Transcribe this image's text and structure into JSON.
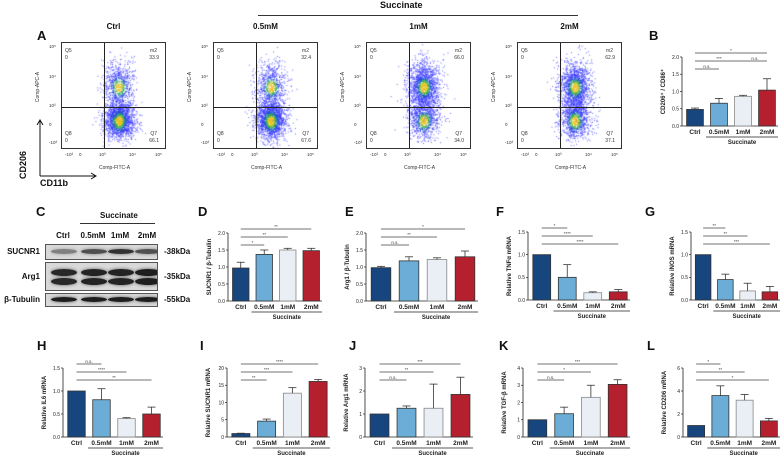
{
  "header": {
    "succinate": "Succinate"
  },
  "panel_letters": {
    "A": "A",
    "B": "B",
    "C": "C",
    "D": "D",
    "E": "E",
    "F": "F",
    "G": "G",
    "H": "H",
    "I": "I",
    "J": "J",
    "K": "K",
    "L": "L"
  },
  "flow": {
    "axis_y_marker": "CD206",
    "axis_x_marker": "CD11b",
    "x_axis_label": "Comp-FITC-A",
    "y_axis_label": "Comp-APC-A",
    "x_ticks": [
      "-10³",
      "0",
      "10³",
      "10⁴",
      "10⁵"
    ],
    "y_ticks": [
      "10⁵",
      "10⁴",
      "10³",
      "0",
      "-10³"
    ],
    "plots": [
      {
        "title": "Ctrl",
        "q5_name": "Q5",
        "q5": "0",
        "m2_name": "m2",
        "m2": "33.9",
        "q8_name": "Q8",
        "q8": "0",
        "q7_name": "Q7",
        "q7": "66.1"
      },
      {
        "title": "0.5mM",
        "q5_name": "Q5",
        "q5": "0",
        "m2_name": "m2",
        "m2": "32.4",
        "q8_name": "Q8",
        "q8": "0",
        "q7_name": "Q7",
        "q7": "67.6"
      },
      {
        "title": "1mM",
        "q5_name": "Q5",
        "q5": "0",
        "m2_name": "m2",
        "m2": "66.0",
        "q8_name": "Q8",
        "q8": "0",
        "q7_name": "Q7",
        "q7": "34.0"
      },
      {
        "title": "2mM",
        "q5_name": "Q5",
        "q5": "0",
        "m2_name": "m2",
        "m2": "62.9",
        "q8_name": "Q8",
        "q8": "0",
        "q7_name": "Q7",
        "q7": "37.1"
      }
    ]
  },
  "blot": {
    "lanes": [
      "Ctrl",
      "0.5mM",
      "1mM",
      "2mM"
    ],
    "rows": [
      {
        "protein": "SUCNR1",
        "kda": "-38kDa",
        "intensity": [
          0.45,
          0.7,
          0.85,
          0.7
        ]
      },
      {
        "protein": "Arg1",
        "kda": "-35kDa",
        "intensity": [
          0.9,
          0.92,
          0.92,
          0.95
        ]
      },
      {
        "protein": "β-Tubulin",
        "kda": "-55kDa",
        "intensity": [
          0.95,
          0.95,
          0.95,
          0.95
        ]
      }
    ]
  },
  "colors": {
    "Ctrl": "#17457e",
    "0.5mM": "#6badd6",
    "1mM": "#e9eff4",
    "2mM": "#b5202f"
  },
  "chart_data": [
    {
      "id": "B",
      "type": "bar",
      "ylabel": "CD206⁺ / CD86⁺",
      "categories": [
        "Ctrl",
        "0.5mM",
        "1mM",
        "2mM"
      ],
      "group_label": "Succinate",
      "ylim": [
        0,
        2
      ],
      "yticks": [
        "0.0",
        "0.5",
        "1.0",
        "1.5",
        "2.0"
      ],
      "values": [
        0.48,
        0.66,
        0.86,
        1.04
      ],
      "errors": [
        0.04,
        0.14,
        0.03,
        0.33
      ],
      "significance": [
        {
          "from": 0,
          "to": 3,
          "label": "*",
          "tier": 0
        },
        {
          "from": 0,
          "to": 2,
          "label": "***",
          "tier": 1
        },
        {
          "from": 2,
          "to": 3,
          "label": "n.s.",
          "tier": 1
        },
        {
          "from": 0,
          "to": 1,
          "label": "n.s.",
          "tier": 2
        }
      ]
    },
    {
      "id": "D",
      "type": "bar",
      "ylabel": "SUCNR1 / β-Tubulin",
      "categories": [
        "Ctrl",
        "0.5mM",
        "1mM",
        "2mM"
      ],
      "group_label": "Succinate",
      "ylim": [
        0,
        2
      ],
      "yticks": [
        "0.0",
        "0.5",
        "1.0",
        "1.5",
        "2.0"
      ],
      "values": [
        0.97,
        1.37,
        1.5,
        1.48
      ],
      "errors": [
        0.17,
        0.13,
        0.05,
        0.07
      ],
      "significance": [
        {
          "from": 0,
          "to": 3,
          "label": "**",
          "tier": 0
        },
        {
          "from": 0,
          "to": 2,
          "label": "**",
          "tier": 1
        },
        {
          "from": 0,
          "to": 1,
          "label": "*",
          "tier": 2
        }
      ]
    },
    {
      "id": "E",
      "type": "bar",
      "ylabel": "Arg1 / β-Tubulin",
      "categories": [
        "Ctrl",
        "0.5mM",
        "1mM",
        "2mM"
      ],
      "group_label": "Succinate",
      "ylim": [
        0,
        2
      ],
      "yticks": [
        "0.0",
        "0.5",
        "1.0",
        "1.5",
        "2.0"
      ],
      "values": [
        0.98,
        1.18,
        1.22,
        1.3
      ],
      "errors": [
        0.04,
        0.12,
        0.05,
        0.17
      ],
      "significance": [
        {
          "from": 0,
          "to": 3,
          "label": "*",
          "tier": 0
        },
        {
          "from": 0,
          "to": 2,
          "label": "**",
          "tier": 1
        },
        {
          "from": 0,
          "to": 1,
          "label": "n.s.",
          "tier": 2
        }
      ]
    },
    {
      "id": "F",
      "type": "bar",
      "ylabel": "Relative TNFα mRNA",
      "categories": [
        "Ctrl",
        "0.5mM",
        "1mM",
        "2mM"
      ],
      "group_label": "Succinate",
      "ylim": [
        0,
        1.5
      ],
      "yticks": [
        "0.0",
        "0.5",
        "1.0",
        "1.5"
      ],
      "values": [
        1.0,
        0.5,
        0.16,
        0.18
      ],
      "errors": [
        0,
        0.28,
        0.02,
        0.05
      ],
      "significance": [
        {
          "from": 0,
          "to": 1,
          "label": "*",
          "tier": 0
        },
        {
          "from": 0,
          "to": 2,
          "label": "****",
          "tier": 1
        },
        {
          "from": 0,
          "to": 3,
          "label": "****",
          "tier": 2
        }
      ]
    },
    {
      "id": "G",
      "type": "bar",
      "ylabel": "Relative iNOS mRNA",
      "categories": [
        "Ctrl",
        "0.5mM",
        "1mM",
        "2mM"
      ],
      "group_label": "Succinate",
      "ylim": [
        0,
        1.5
      ],
      "yticks": [
        "0.0",
        "0.5",
        "1.0",
        "1.5"
      ],
      "values": [
        1.0,
        0.45,
        0.2,
        0.18
      ],
      "errors": [
        0,
        0.12,
        0.17,
        0.12
      ],
      "significance": [
        {
          "from": 0,
          "to": 1,
          "label": "**",
          "tier": 0
        },
        {
          "from": 0,
          "to": 2,
          "label": "**",
          "tier": 1
        },
        {
          "from": 0,
          "to": 3,
          "label": "***",
          "tier": 2
        }
      ]
    },
    {
      "id": "H",
      "type": "bar",
      "ylabel": "Relative IL6 mRNA",
      "categories": [
        "Ctrl",
        "0.5mM",
        "1mM",
        "2mM"
      ],
      "group_label": "Succinate",
      "ylim": [
        0,
        1.5
      ],
      "yticks": [
        "0.0",
        "0.5",
        "1.0",
        "1.5"
      ],
      "values": [
        1.0,
        0.81,
        0.4,
        0.5
      ],
      "errors": [
        0,
        0.24,
        0.02,
        0.15
      ],
      "significance": [
        {
          "from": 0,
          "to": 1,
          "label": "n.s.",
          "tier": 0
        },
        {
          "from": 0,
          "to": 2,
          "label": "****",
          "tier": 1
        },
        {
          "from": 0,
          "to": 3,
          "label": "**",
          "tier": 2
        }
      ]
    },
    {
      "id": "I",
      "type": "bar",
      "ylabel": "Relative SUCNR1 mRNA",
      "categories": [
        "Ctrl",
        "0.5mM",
        "1mM",
        "2mM"
      ],
      "group_label": "Succinate",
      "ylim": [
        0,
        20
      ],
      "yticks": [
        "0",
        "5",
        "10",
        "15",
        "20"
      ],
      "values": [
        1.0,
        4.6,
        12.7,
        16.1
      ],
      "errors": [
        0.1,
        0.6,
        1.6,
        0.6
      ],
      "significance": [
        {
          "from": 0,
          "to": 3,
          "label": "****",
          "tier": 0
        },
        {
          "from": 0,
          "to": 2,
          "label": "***",
          "tier": 1
        },
        {
          "from": 0,
          "to": 1,
          "label": "**",
          "tier": 2
        }
      ]
    },
    {
      "id": "J",
      "type": "bar",
      "ylabel": "Relative Arg1 mRNA",
      "categories": [
        "Ctrl",
        "0.5mM",
        "1mM",
        "2mM"
      ],
      "group_label": "Succinate",
      "ylim": [
        0,
        3
      ],
      "yticks": [
        "0",
        "1",
        "2",
        "3"
      ],
      "values": [
        1.0,
        1.25,
        1.25,
        1.85
      ],
      "errors": [
        0,
        0.1,
        1.05,
        0.75
      ],
      "significance": [
        {
          "from": 0,
          "to": 3,
          "label": "***",
          "tier": 0
        },
        {
          "from": 0,
          "to": 2,
          "label": "**",
          "tier": 1
        },
        {
          "from": 0,
          "to": 1,
          "label": "n.s.",
          "tier": 2
        }
      ]
    },
    {
      "id": "K",
      "type": "bar",
      "ylabel": "Relative TGF-β mRNA",
      "categories": [
        "Ctrl",
        "0.5mM",
        "1mM",
        "2mM"
      ],
      "group_label": "Succinate",
      "ylim": [
        0,
        4
      ],
      "yticks": [
        "0",
        "1",
        "2",
        "3",
        "4"
      ],
      "values": [
        1.0,
        1.35,
        2.3,
        3.05
      ],
      "errors": [
        0,
        0.38,
        0.7,
        0.27
      ],
      "significance": [
        {
          "from": 0,
          "to": 3,
          "label": "***",
          "tier": 0
        },
        {
          "from": 0,
          "to": 2,
          "label": "*",
          "tier": 1
        },
        {
          "from": 0,
          "to": 1,
          "label": "n.s.",
          "tier": 2
        }
      ]
    },
    {
      "id": "L",
      "type": "bar",
      "ylabel": "Relative CD206 mRNA",
      "categories": [
        "Ctrl",
        "0.5mM",
        "1mM",
        "2mM"
      ],
      "group_label": "Succinate",
      "ylim": [
        0,
        6
      ],
      "yticks": [
        "0",
        "2",
        "4",
        "6"
      ],
      "values": [
        1.0,
        3.6,
        3.2,
        1.4
      ],
      "errors": [
        0,
        0.85,
        0.5,
        0.22
      ],
      "significance": [
        {
          "from": 0,
          "to": 1,
          "label": "*",
          "tier": 0
        },
        {
          "from": 0,
          "to": 2,
          "label": "**",
          "tier": 1
        },
        {
          "from": 0,
          "to": 3,
          "label": "*",
          "tier": 2
        }
      ]
    }
  ]
}
